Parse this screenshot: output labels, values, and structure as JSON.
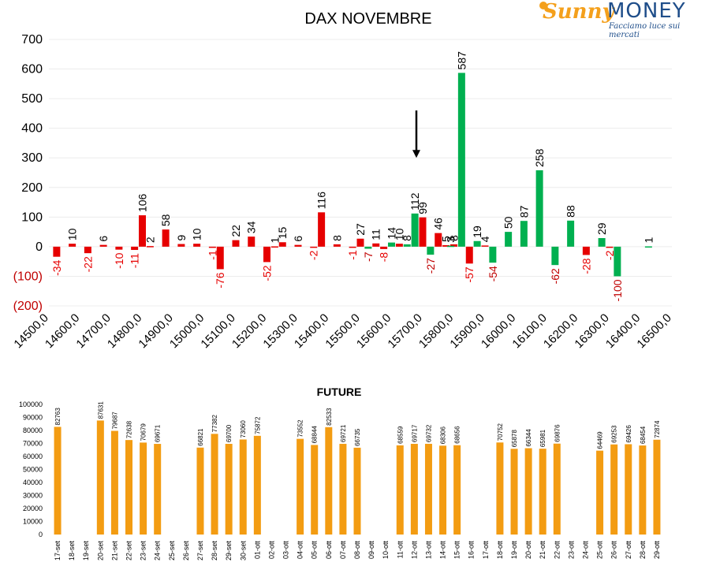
{
  "logo": {
    "brand_a": "Sunny",
    "brand_b": "MONEY",
    "tagline": "Facciamo luce sui mercati",
    "colors": {
      "orange": "#f4a01c",
      "blue": "#1f4e8a"
    }
  },
  "chart_data": [
    {
      "type": "bar",
      "title": "DAX NOVEMBRE",
      "ylim": [
        -200,
        700
      ],
      "y_ticks": [
        "700",
        "600",
        "500",
        "400",
        "300",
        "200",
        "100",
        "0",
        "(100)",
        "(200)"
      ],
      "y_tick_values": [
        700,
        600,
        500,
        400,
        300,
        200,
        100,
        0,
        -100,
        -200
      ],
      "x_tick_labels": [
        "14500,0",
        "14600,0",
        "14700,0",
        "14800,0",
        "14900,0",
        "15000,0",
        "15100,0",
        "15200,0",
        "15300,0",
        "15400,0",
        "15500,0",
        "15600,0",
        "15700,0",
        "15800,0",
        "15900,0",
        "16000,0",
        "16100,0",
        "16200,0",
        "16300,0",
        "16400,0",
        "16500,0"
      ],
      "x_range": [
        14500,
        16500
      ],
      "grid": true,
      "series": [
        {
          "color": "#e60000",
          "points": [
            {
              "x": 14525,
              "y": -34
            },
            {
              "x": 14575,
              "y": 10
            },
            {
              "x": 14625,
              "y": -22
            },
            {
              "x": 14675,
              "y": 6
            },
            {
              "x": 14725,
              "y": -10
            },
            {
              "x": 14775,
              "y": -11
            },
            {
              "x": 14800,
              "y": 106
            },
            {
              "x": 14825,
              "y": 2
            },
            {
              "x": 14875,
              "y": 58
            },
            {
              "x": 14925,
              "y": 9
            },
            {
              "x": 14975,
              "y": 10
            },
            {
              "x": 15025,
              "y": -1
            },
            {
              "x": 15050,
              "y": -76
            },
            {
              "x": 15100,
              "y": 22
            },
            {
              "x": 15150,
              "y": 34
            },
            {
              "x": 15200,
              "y": -52
            },
            {
              "x": 15225,
              "y": 1
            },
            {
              "x": 15250,
              "y": 15
            },
            {
              "x": 15300,
              "y": 6
            },
            {
              "x": 15350,
              "y": -2
            },
            {
              "x": 15375,
              "y": 116
            },
            {
              "x": 15425,
              "y": 8
            },
            {
              "x": 15475,
              "y": -1
            },
            {
              "x": 15500,
              "y": 27
            },
            {
              "x": 15550,
              "y": 11
            },
            {
              "x": 15575,
              "y": -8
            },
            {
              "x": 15625,
              "y": 10
            },
            {
              "x": 15700,
              "y": 99
            },
            {
              "x": 15750,
              "y": 46
            },
            {
              "x": 15775,
              "y": 5
            },
            {
              "x": 15800,
              "y": 8
            },
            {
              "x": 15850,
              "y": -57
            },
            {
              "x": 15900,
              "y": 4
            }
          ]
        },
        {
          "color": "#00b050",
          "points": [
            {
              "x": 15525,
              "y": -7
            },
            {
              "x": 15600,
              "y": 14
            },
            {
              "x": 15650,
              "y": 8
            },
            {
              "x": 15675,
              "y": 112
            },
            {
              "x": 15725,
              "y": -27
            },
            {
              "x": 15790,
              "y": 3
            },
            {
              "x": 15825,
              "y": 587
            },
            {
              "x": 15875,
              "y": 19
            },
            {
              "x": 15925,
              "y": -54
            },
            {
              "x": 15975,
              "y": 50
            },
            {
              "x": 16025,
              "y": 87
            },
            {
              "x": 16075,
              "y": 258
            },
            {
              "x": 16125,
              "y": -62
            },
            {
              "x": 16175,
              "y": 88
            },
            {
              "x": 16275,
              "y": 29
            },
            {
              "x": 16325,
              "y": -100
            },
            {
              "x": 16425,
              "y": 1
            }
          ]
        },
        {
          "color": "#e60000",
          "points": [
            {
              "x": 16225,
              "y": -28
            },
            {
              "x": 16300,
              "y": -2
            }
          ]
        }
      ],
      "annotation": {
        "type": "arrow",
        "x": 15700,
        "y_from": 460,
        "y_to": 300
      }
    },
    {
      "type": "bar",
      "title": "FUTURE",
      "ylim": [
        0,
        100000
      ],
      "y_ticks": [
        "100000",
        "90000",
        "80000",
        "70000",
        "60000",
        "50000",
        "40000",
        "30000",
        "20000",
        "10000",
        "0"
      ],
      "y_tick_values": [
        100000,
        90000,
        80000,
        70000,
        60000,
        50000,
        40000,
        30000,
        20000,
        10000,
        0
      ],
      "grid": false,
      "bar_color": "#f39c12",
      "categories": [
        "17-set",
        "18-set",
        "19-set",
        "20-set",
        "21-set",
        "22-set",
        "23-set",
        "24-set",
        "25-set",
        "26-set",
        "27-set",
        "28-set",
        "29-set",
        "30-set",
        "01-ott",
        "02-ott",
        "03-ott",
        "04-ott",
        "05-ott",
        "06-ott",
        "07-ott",
        "08-ott",
        "09-ott",
        "10-ott",
        "11-ott",
        "12-ott",
        "13-ott",
        "14-ott",
        "15-ott",
        "16-ott",
        "17-ott",
        "18-ott",
        "19-ott",
        "20-ott",
        "21-ott",
        "22-ott",
        "23-ott",
        "24-ott",
        "25-ott",
        "26-ott",
        "27-ott",
        "28-ott",
        "29-ott"
      ],
      "values": [
        82763,
        null,
        null,
        87631,
        79687,
        72638,
        70679,
        69671,
        null,
        null,
        66821,
        77382,
        69700,
        73060,
        75872,
        null,
        null,
        73552,
        68844,
        82533,
        69721,
        66735,
        null,
        null,
        68559,
        69717,
        69732,
        68306,
        68656,
        null,
        null,
        70752,
        65878,
        66344,
        65981,
        69876,
        null,
        null,
        64469,
        69253,
        69426,
        68454,
        72874
      ]
    }
  ]
}
